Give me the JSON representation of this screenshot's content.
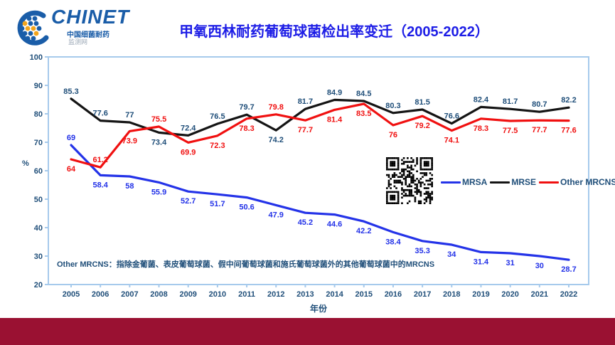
{
  "logo": {
    "name": "CHINET",
    "subtitle1": "中国细菌耐药",
    "subtitle2": "监测网"
  },
  "title": "甲氧西林耐药葡萄球菌检出率变迁（2005-2022）",
  "footnote": "Other MRCNS：指除金葡菌、表皮葡萄球菌、假中间葡萄球菌和施氏葡萄球菌外的其他葡萄球菌中的MRCNS",
  "colors": {
    "title_blue": "#1D1DE6",
    "axis_border": "#A6CAEC",
    "axis_text": "#1F4E79",
    "bottom_bar": "#9A1132",
    "mrsa_blue": "#2433E8",
    "mrse_black": "#141414",
    "mrse_label": "#1F4E79",
    "other_red": "#F01010"
  },
  "chart_data": {
    "type": "line",
    "x": [
      2005,
      2006,
      2007,
      2008,
      2009,
      2010,
      2011,
      2012,
      2013,
      2014,
      2015,
      2016,
      2017,
      2018,
      2019,
      2020,
      2021,
      2022
    ],
    "xlabel": "年份",
    "ylabel": "%",
    "ylim": [
      20,
      100
    ],
    "ytick_step": 10,
    "grid": false,
    "legend_position": "middle-right",
    "series": [
      {
        "name": "MRSA",
        "color": "#2433E8",
        "label_color": "#2433E8",
        "values": [
          69,
          58.4,
          58,
          55.9,
          52.7,
          51.7,
          50.6,
          47.9,
          45.2,
          44.6,
          42.2,
          38.4,
          35.3,
          34,
          31.4,
          31,
          30,
          28.7
        ],
        "label_pos": [
          "a",
          "b",
          "b",
          "b",
          "b",
          "b",
          "b",
          "b",
          "b",
          "b",
          "b",
          "b",
          "b",
          "b",
          "b",
          "b",
          "b",
          "b"
        ]
      },
      {
        "name": "MRSE",
        "color": "#141414",
        "label_color": "#1F4E79",
        "values": [
          85.3,
          77.6,
          77,
          73.4,
          72.4,
          76.5,
          79.7,
          74.2,
          81.7,
          84.9,
          84.5,
          80.3,
          81.5,
          76.6,
          82.4,
          81.7,
          80.7,
          82.2
        ],
        "label_pos": [
          "a",
          "a",
          "a",
          "b",
          "a",
          "a",
          "a",
          "b",
          "a",
          "a",
          "a",
          "a",
          "a",
          "a",
          "a",
          "a",
          "a",
          "a"
        ]
      },
      {
        "name": "Other MRCNS",
        "color": "#F01010",
        "label_color": "#F01010",
        "values": [
          64,
          61.2,
          73.9,
          75.5,
          69.9,
          72.3,
          78.3,
          79.8,
          77.7,
          81.4,
          83.5,
          76,
          79.2,
          74.1,
          78.3,
          77.5,
          77.7,
          77.6
        ],
        "label_pos": [
          "b",
          "a",
          "b",
          "a",
          "b",
          "b",
          "b",
          "a",
          "b",
          "b",
          "b",
          "b",
          "b",
          "b",
          "b",
          "b",
          "b",
          "b"
        ]
      }
    ]
  }
}
